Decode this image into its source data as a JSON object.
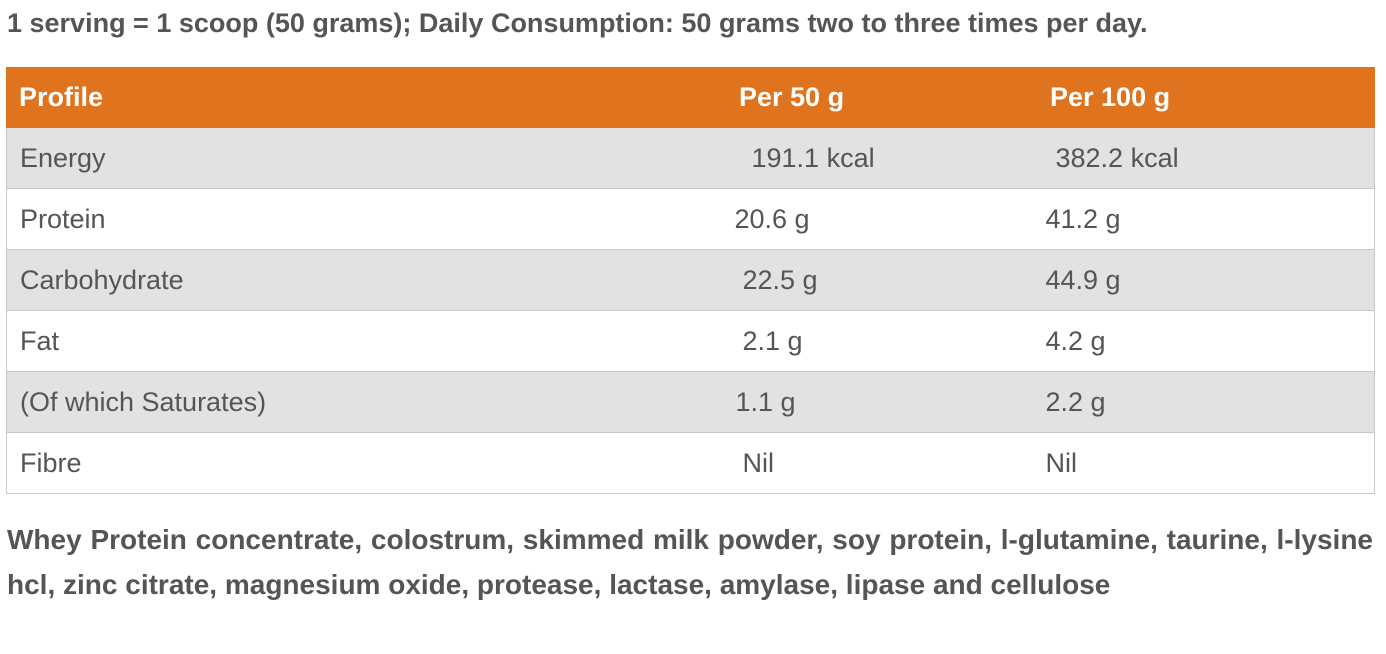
{
  "serving_info": "1 serving = 1 scoop (50 grams); Daily Consumption: 50 grams two to three times per day.",
  "table": {
    "headers": [
      "Profile",
      "Per 50 g",
      "Per 100 g"
    ],
    "rows": [
      {
        "profile": "Energy",
        "per_50g": "191.1 kcal",
        "per_100g": "382.2 kcal"
      },
      {
        "profile": "Protein",
        "per_50g": "20.6 g",
        "per_100g": "41.2 g"
      },
      {
        "profile": "Carbohydrate",
        "per_50g": "22.5 g",
        "per_100g": "44.9 g"
      },
      {
        "profile": "Fat",
        "per_50g": "2.1 g",
        "per_100g": "4.2 g"
      },
      {
        "profile": "(Of which Saturates)",
        "per_50g": "1.1 g",
        "per_100g": "2.2 g"
      },
      {
        "profile": "Fibre",
        "per_50g": "Nil",
        "per_100g": "Nil"
      }
    ],
    "header_color": "#e0731d",
    "stripe_color": "#e2e2e2"
  },
  "ingredients": "Whey Protein concentrate, colostrum, skimmed milk powder, soy protein, l-glutamine, taurine, l-lysine hcl, zinc citrate, magnesium oxide, protease, lactase, amylase, lipase and cellulose"
}
